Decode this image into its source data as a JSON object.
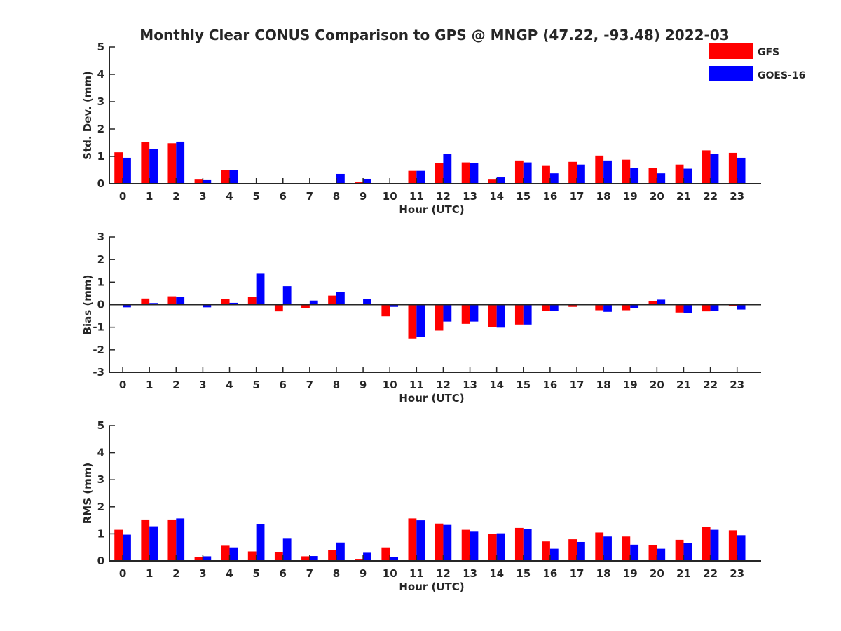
{
  "title": "Monthly Clear CONUS Comparison to GPS @ MNGP (47.22, -93.48) 2022-03",
  "colors": {
    "gfs": "#ff0000",
    "goes": "#0000ff",
    "axis": "#262626"
  },
  "legend": {
    "gfs": "GFS",
    "goes": "GOES-16"
  },
  "chart_data": [
    {
      "type": "bar",
      "ylabel": "Std. Dev. (mm)",
      "xlabel": "Hour (UTC)",
      "ylim": [
        0,
        5
      ],
      "yticks": [
        0,
        1,
        2,
        3,
        4,
        5
      ],
      "categories": [
        "0",
        "1",
        "2",
        "3",
        "4",
        "5",
        "6",
        "7",
        "8",
        "9",
        "10",
        "11",
        "12",
        "13",
        "14",
        "15",
        "16",
        "17",
        "18",
        "19",
        "20",
        "21",
        "22",
        "23"
      ],
      "series": [
        {
          "name": "GFS",
          "values": [
            1.15,
            1.52,
            1.48,
            0.15,
            0.5,
            0,
            0,
            0,
            0.02,
            0.05,
            0,
            0.47,
            0.75,
            0.78,
            0.15,
            0.85,
            0.65,
            0.8,
            1.03,
            0.88,
            0.57,
            0.7,
            1.22,
            1.13
          ]
        },
        {
          "name": "GOES-16",
          "values": [
            0.95,
            1.28,
            1.54,
            0.13,
            0.5,
            0,
            0,
            0,
            0.36,
            0.18,
            0,
            0.47,
            1.1,
            0.75,
            0.23,
            0.78,
            0.38,
            0.7,
            0.85,
            0.57,
            0.38,
            0.55,
            1.1,
            0.95
          ]
        }
      ]
    },
    {
      "type": "bar",
      "ylabel": "Bias (mm)",
      "xlabel": "Hour (UTC)",
      "ylim": [
        -3,
        3
      ],
      "yticks": [
        -3,
        -2,
        -1,
        0,
        1,
        2,
        3
      ],
      "zero_line": true,
      "categories": [
        "0",
        "1",
        "2",
        "3",
        "4",
        "5",
        "6",
        "7",
        "8",
        "9",
        "10",
        "11",
        "12",
        "13",
        "14",
        "15",
        "16",
        "17",
        "18",
        "19",
        "20",
        "21",
        "22",
        "23"
      ],
      "series": [
        {
          "name": "GFS",
          "values": [
            0,
            0.27,
            0.37,
            0,
            0.25,
            0.35,
            -0.3,
            -0.17,
            0.4,
            0,
            -0.52,
            -1.5,
            -1.15,
            -0.85,
            -0.98,
            -0.88,
            -0.28,
            -0.1,
            -0.25,
            -0.25,
            0.15,
            -0.35,
            -0.3,
            -0.05
          ]
        },
        {
          "name": "GOES-16",
          "values": [
            -0.12,
            0.07,
            0.33,
            -0.12,
            0.08,
            1.37,
            0.82,
            0.18,
            0.57,
            0.25,
            -0.1,
            -1.42,
            -0.75,
            -0.75,
            -1.02,
            -0.88,
            -0.27,
            0,
            -0.32,
            -0.17,
            0.22,
            -0.38,
            -0.28,
            -0.22
          ]
        }
      ]
    },
    {
      "type": "bar",
      "ylabel": "RMS (mm)",
      "xlabel": "Hour (UTC)",
      "ylim": [
        0,
        5
      ],
      "yticks": [
        0,
        1,
        2,
        3,
        4,
        5
      ],
      "categories": [
        "0",
        "1",
        "2",
        "3",
        "4",
        "5",
        "6",
        "7",
        "8",
        "9",
        "10",
        "11",
        "12",
        "13",
        "14",
        "15",
        "16",
        "17",
        "18",
        "19",
        "20",
        "21",
        "22",
        "23"
      ],
      "series": [
        {
          "name": "GFS",
          "values": [
            1.15,
            1.53,
            1.53,
            0.15,
            0.56,
            0.35,
            0.32,
            0.17,
            0.4,
            0.05,
            0.5,
            1.57,
            1.38,
            1.15,
            1.0,
            1.22,
            0.72,
            0.8,
            1.05,
            0.9,
            0.57,
            0.78,
            1.25,
            1.13
          ]
        },
        {
          "name": "GOES-16",
          "values": [
            0.97,
            1.28,
            1.57,
            0.17,
            0.5,
            1.37,
            0.82,
            0.18,
            0.68,
            0.3,
            0.13,
            1.5,
            1.33,
            1.08,
            1.02,
            1.18,
            0.45,
            0.7,
            0.9,
            0.6,
            0.45,
            0.67,
            1.15,
            0.95
          ]
        }
      ]
    }
  ]
}
